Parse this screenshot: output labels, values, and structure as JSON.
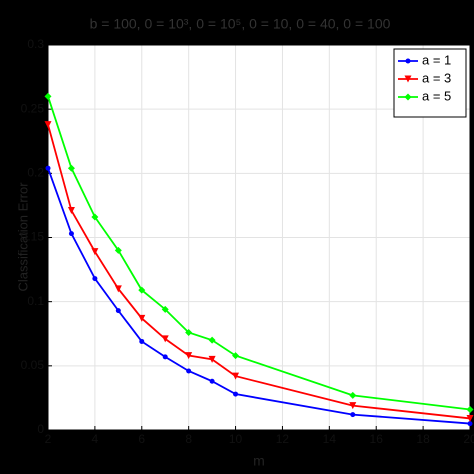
{
  "chart_data": {
    "type": "line",
    "title": "b = 100,   0 = 10³,   0 = 10⁵,   0 = 10,   0 = 40,   0 = 100",
    "x_label": "m",
    "y_label": "Classification Error",
    "x": [
      2,
      3,
      4,
      5,
      6,
      7,
      8,
      9,
      10,
      15,
      20
    ],
    "series": [
      {
        "name": "a = 1",
        "color": "#0000ff",
        "marker": "circle",
        "values": [
          0.204,
          0.153,
          0.118,
          0.093,
          0.069,
          0.057,
          0.046,
          0.038,
          0.028,
          0.012,
          0.005
        ]
      },
      {
        "name": "a = 3",
        "color": "#ff0000",
        "marker": "triangle-down",
        "values": [
          0.238,
          0.171,
          0.139,
          0.11,
          0.087,
          0.071,
          0.058,
          0.055,
          0.042,
          0.019,
          0.009
        ]
      },
      {
        "name": "a = 5",
        "color": "#00ff00",
        "marker": "diamond",
        "values": [
          0.26,
          0.204,
          0.166,
          0.14,
          0.109,
          0.094,
          0.076,
          0.07,
          0.058,
          0.027,
          0.016
        ]
      }
    ],
    "xlim": [
      2,
      20
    ],
    "xticks": [
      2,
      4,
      6,
      8,
      10,
      12,
      14,
      16,
      18,
      20
    ],
    "ylim": [
      0,
      0.3
    ],
    "yticks": [
      0,
      0.05,
      0.1,
      0.15,
      0.2,
      0.25,
      0.3
    ],
    "grid": true,
    "legend_position": "top-right"
  }
}
